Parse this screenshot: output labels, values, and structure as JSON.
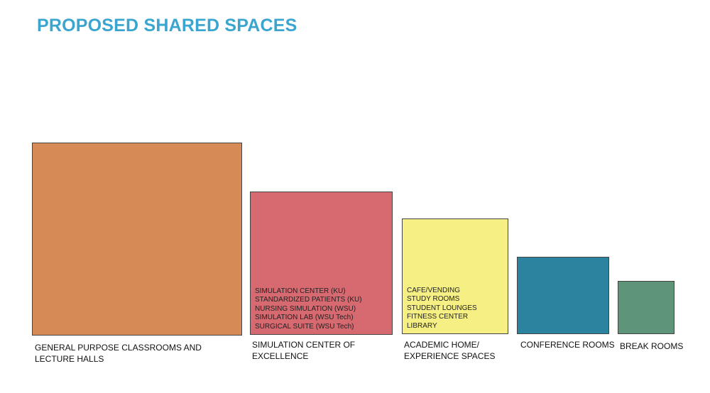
{
  "title": "PROPOSED SHARED SPACES",
  "spaces": [
    {
      "label_lines": [
        "GENERAL PURPOSE CLASSROOMS AND",
        "LECTURE HALLS"
      ],
      "color": "#d68a55",
      "items": []
    },
    {
      "label_lines": [
        "SIMULATION CENTER OF",
        "EXCELLENCE"
      ],
      "color": "#d66a70",
      "items": [
        "SIMULATION CENTER (KU)",
        "STANDARDIZED PATIENTS (KU)",
        "NURSING SIMULATION (WSU)",
        "SIMULATION LAB (WSU Tech)",
        "SURGICAL SUITE (WSU Tech)"
      ]
    },
    {
      "label_lines": [
        "ACADEMIC HOME/",
        "EXPERIENCE SPACES"
      ],
      "color": "#f5ef84",
      "items": [
        "CAFE/VENDING",
        "STUDY ROOMS",
        "STUDENT LOUNGES",
        "FITNESS CENTER",
        "LIBRARY"
      ]
    },
    {
      "label_lines": [
        "CONFERENCE ROOMS"
      ],
      "color": "#2c83a0",
      "items": []
    },
    {
      "label_lines": [
        "BREAK ROOMS"
      ],
      "color": "#5e9479",
      "items": []
    }
  ]
}
